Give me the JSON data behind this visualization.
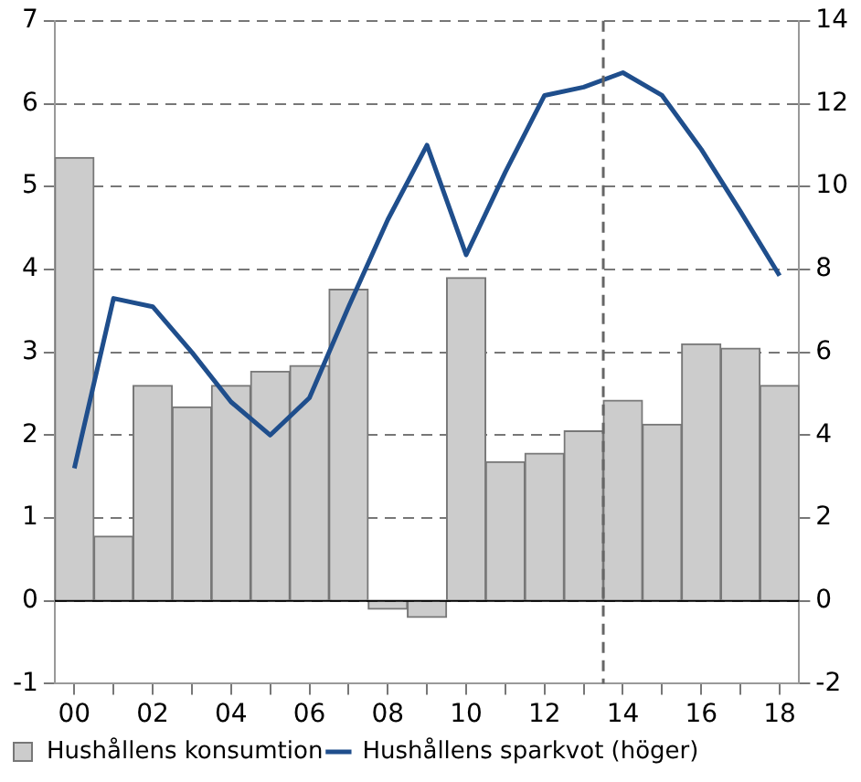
{
  "chart_data": {
    "type": "bar",
    "x": [
      2000,
      2001,
      2002,
      2003,
      2004,
      2005,
      2006,
      2007,
      2008,
      2009,
      2010,
      2011,
      2012,
      2013,
      2014,
      2015,
      2016,
      2017,
      2018
    ],
    "xlim": [
      1999.5,
      2018.5
    ],
    "xticks": [
      {
        "value": 2000,
        "label": "00"
      },
      {
        "value": 2001,
        "label": null
      },
      {
        "value": 2002,
        "label": "02"
      },
      {
        "value": 2003,
        "label": null
      },
      {
        "value": 2004,
        "label": "04"
      },
      {
        "value": 2005,
        "label": null
      },
      {
        "value": 2006,
        "label": "06"
      },
      {
        "value": 2007,
        "label": null
      },
      {
        "value": 2008,
        "label": "08"
      },
      {
        "value": 2009,
        "label": null
      },
      {
        "value": 2010,
        "label": "10"
      },
      {
        "value": 2011,
        "label": null
      },
      {
        "value": 2012,
        "label": "12"
      },
      {
        "value": 2013,
        "label": null
      },
      {
        "value": 2014,
        "label": "14"
      },
      {
        "value": 2015,
        "label": null
      },
      {
        "value": 2016,
        "label": "16"
      },
      {
        "value": 2017,
        "label": null
      },
      {
        "value": 2018,
        "label": "18"
      }
    ],
    "series": [
      {
        "name": "Hushållens konsumtion",
        "color": "#cccccc",
        "values": [
          5.35,
          0.78,
          2.6,
          2.34,
          2.6,
          2.77,
          2.84,
          3.76,
          -0.1,
          -0.2,
          3.9,
          1.68,
          1.78,
          2.05,
          2.42,
          2.13,
          3.1,
          3.05,
          2.6
        ]
      },
      {
        "name": "Hushållens sparkvot (höger)",
        "type": "line",
        "axis": "y2",
        "color": "#1f4e8c",
        "values": [
          3.2,
          7.3,
          7.1,
          6.0,
          4.8,
          4.0,
          4.9,
          7.1,
          9.2,
          11.0,
          8.35,
          10.35,
          12.2,
          12.4,
          12.75,
          12.2,
          10.9,
          9.4,
          7.85
        ]
      }
    ],
    "ylim": [
      -1,
      7
    ],
    "yticks": [
      -1,
      0,
      1,
      2,
      3,
      4,
      5,
      6,
      7
    ],
    "y2lim": [
      -2,
      14
    ],
    "y2ticks": [
      -2,
      0,
      2,
      4,
      6,
      8,
      10,
      12,
      14
    ],
    "ref_lines": [
      {
        "axis": "x",
        "value": 2013.5,
        "line_style": "dashed",
        "color": "#666666"
      }
    ],
    "grid": "y",
    "legend": "bottom",
    "marker": "none"
  }
}
